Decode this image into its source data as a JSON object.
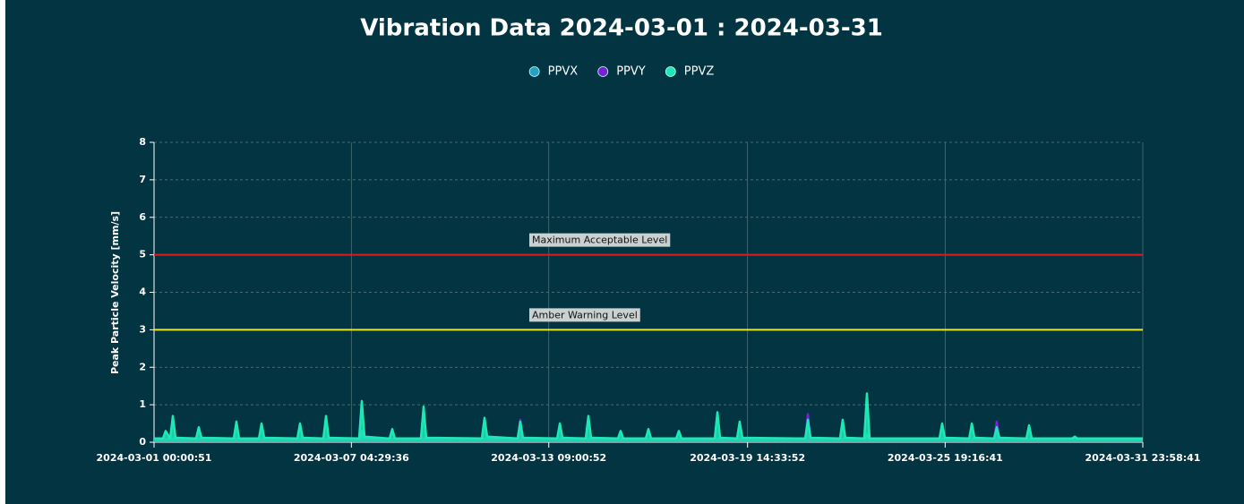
{
  "chart_data": {
    "type": "line",
    "title": "Vibration Data 2024-03-01 : 2024-03-31",
    "y_label": "Peak Particle Velocity [mm/s]",
    "ylim": [
      0,
      8
    ],
    "yticks": [
      0,
      1,
      2,
      3,
      4,
      5,
      6,
      7,
      8
    ],
    "xlim": [
      "2024-03-01 00:00:51",
      "2024-03-31 23:58:41"
    ],
    "xticks": [
      "2024-03-01 00:00:51",
      "2024-03-07 04:29:36",
      "2024-03-13 09:00:52",
      "2024-03-19 14:33:52",
      "2024-03-25 19:16:41",
      "2024-03-31 23:58:41"
    ],
    "grid": true,
    "legend": "top",
    "annotations": [
      {
        "label": "Maximum Acceptable Level",
        "value": 5,
        "color": "#e01b1b"
      },
      {
        "label": "Amber Warning Level",
        "value": 3,
        "color": "#e8e81a"
      }
    ],
    "series": [
      {
        "name": "PPVX",
        "color": "#2a9fc4",
        "x": [
          "2024-03-01 00:00:51",
          "2024-03-07 10:20:00",
          "2024-03-07 12:20:00",
          "2024-03-07 14:20:00",
          "2024-03-23 06:25:00",
          "2024-03-23 08:25:00",
          "2024-03-23 10:25:00",
          "2024-03-31 23:58:41"
        ],
        "values": [
          0.08,
          0.08,
          0.3,
          0.08,
          0.08,
          0.2,
          0.08,
          0.08
        ]
      },
      {
        "name": "PPVY",
        "color": "#7a1fd8",
        "x": [
          "2024-03-01 00:00:51",
          "2024-03-12 09:35:00",
          "2024-03-12 11:35:00",
          "2024-03-12 13:35:00",
          "2024-03-21 10:00:00",
          "2024-03-21 12:00:00",
          "2024-03-21 14:00:00",
          "2024-03-27 08:05:00",
          "2024-03-27 10:05:00",
          "2024-03-27 12:05:00",
          "2024-03-31 23:58:41"
        ],
        "values": [
          0.05,
          0.05,
          0.6,
          0.05,
          0.05,
          0.75,
          0.05,
          0.05,
          0.55,
          0.05,
          0.05
        ]
      },
      {
        "name": "PPVZ",
        "color": "#1de9b6",
        "x": [
          "2024-03-01 00:00:51",
          "2024-03-01 06:45:00",
          "2024-03-01 08:45:00",
          "2024-03-01 12:10:00",
          "2024-03-01 14:10:00",
          "2024-03-01 16:10:00",
          "2024-03-02 07:40:00",
          "2024-03-02 09:40:00",
          "2024-03-02 11:40:00",
          "2024-03-03 12:00:00",
          "2024-03-03 14:00:00",
          "2024-03-03 16:00:00",
          "2024-03-04 06:55:00",
          "2024-03-04 08:55:00",
          "2024-03-04 10:55:00",
          "2024-03-05 11:50:00",
          "2024-03-05 13:50:00",
          "2024-03-05 15:50:00",
          "2024-03-06 07:25:00",
          "2024-03-06 09:25:00",
          "2024-03-06 11:25:00",
          "2024-03-07 10:20:00",
          "2024-03-07 12:20:00",
          "2024-03-07 14:20:00",
          "2024-03-08 09:15:00",
          "2024-03-08 11:15:00",
          "2024-03-08 13:15:00",
          "2024-03-09 08:50:00",
          "2024-03-09 10:50:00",
          "2024-03-09 12:50:00",
          "2024-03-11 06:40:00",
          "2024-03-11 08:40:00",
          "2024-03-11 10:40:00",
          "2024-03-12 09:35:00",
          "2024-03-12 11:35:00",
          "2024-03-12 13:35:00",
          "2024-03-13 15:20:00",
          "2024-03-13 17:20:00",
          "2024-03-13 19:20:00",
          "2024-03-14 12:50:00",
          "2024-03-14 14:50:00",
          "2024-03-14 16:50:00",
          "2024-03-15 13:05:00",
          "2024-03-15 15:05:00",
          "2024-03-15 17:05:00",
          "2024-03-16 10:00:00",
          "2024-03-16 12:00:00",
          "2024-03-16 14:00:00",
          "2024-03-17 08:55:00",
          "2024-03-17 10:55:00",
          "2024-03-17 12:55:00",
          "2024-03-18 13:55:00",
          "2024-03-18 15:55:00",
          "2024-03-18 17:55:00",
          "2024-03-19 06:40:00",
          "2024-03-19 08:40:00",
          "2024-03-19 10:40:00",
          "2024-03-21 10:00:00",
          "2024-03-21 12:00:00",
          "2024-03-21 14:00:00",
          "2024-03-22 12:10:00",
          "2024-03-22 14:10:00",
          "2024-03-22 16:10:00",
          "2024-03-23 06:25:00",
          "2024-03-23 08:25:00",
          "2024-03-23 10:25:00",
          "2024-03-25 15:00:00",
          "2024-03-25 17:00:00",
          "2024-03-25 19:00:00",
          "2024-03-26 13:20:00",
          "2024-03-26 15:20:00",
          "2024-03-26 17:20:00",
          "2024-03-27 08:05:00",
          "2024-03-27 10:05:00",
          "2024-03-27 12:05:00",
          "2024-03-28 08:25:00",
          "2024-03-28 10:25:00",
          "2024-03-28 12:25:00",
          "2024-03-29 18:50:00",
          "2024-03-29 20:50:00",
          "2024-03-29 22:50:00",
          "2024-03-31 23:58:41"
        ],
        "values": [
          0.1,
          0.1,
          0.3,
          0.1,
          0.7,
          0.12,
          0.1,
          0.4,
          0.12,
          0.1,
          0.55,
          0.1,
          0.1,
          0.5,
          0.12,
          0.1,
          0.5,
          0.12,
          0.1,
          0.7,
          0.12,
          0.1,
          1.1,
          0.15,
          0.1,
          0.35,
          0.1,
          0.1,
          0.95,
          0.12,
          0.1,
          0.65,
          0.15,
          0.1,
          0.55,
          0.12,
          0.1,
          0.5,
          0.12,
          0.1,
          0.7,
          0.12,
          0.1,
          0.3,
          0.1,
          0.1,
          0.35,
          0.1,
          0.1,
          0.3,
          0.1,
          0.1,
          0.8,
          0.12,
          0.1,
          0.55,
          0.12,
          0.1,
          0.6,
          0.12,
          0.1,
          0.6,
          0.12,
          0.1,
          1.3,
          0.1,
          0.1,
          0.5,
          0.12,
          0.1,
          0.5,
          0.12,
          0.1,
          0.4,
          0.12,
          0.1,
          0.45,
          0.1,
          0.1,
          0.15,
          0.1,
          0.1
        ]
      }
    ]
  }
}
